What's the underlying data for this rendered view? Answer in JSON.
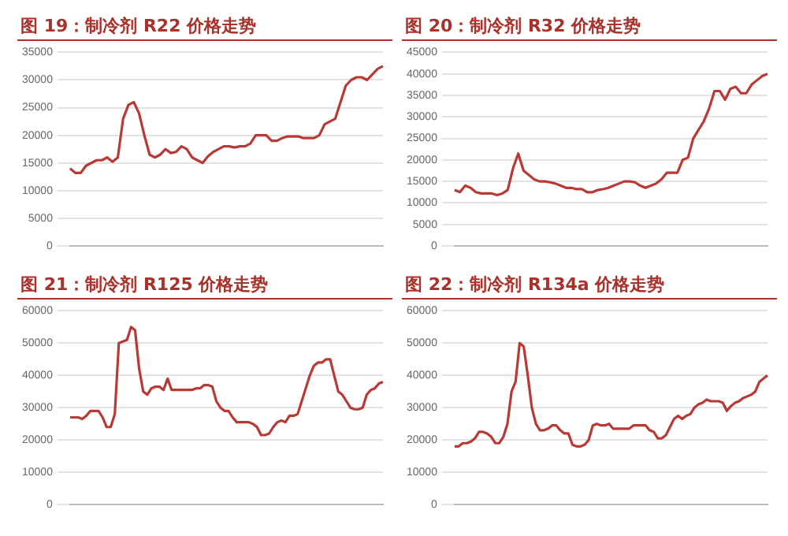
{
  "chart_data": [
    {
      "type": "line",
      "title": "图 19：制冷剂 R22 价格走势",
      "color": "#b83a35",
      "marker": "none",
      "grid": "y",
      "tick_labels": "y",
      "ylim": [
        0,
        35000
      ],
      "yticks": [
        0,
        5000,
        10000,
        15000,
        20000,
        25000,
        30000,
        35000
      ],
      "categories": [
        null,
        null,
        null,
        null,
        null,
        null,
        null,
        null,
        null,
        null,
        null,
        null,
        null,
        null,
        null,
        null,
        null,
        null,
        null,
        null,
        null,
        null,
        null,
        null,
        null,
        null,
        null,
        null,
        null,
        null,
        null,
        null,
        null,
        null,
        null,
        null,
        null,
        null,
        null,
        null,
        null,
        null,
        null,
        null,
        null,
        null,
        null,
        null,
        null,
        null,
        null,
        null,
        null,
        null,
        null,
        null,
        null,
        null,
        null,
        null
      ],
      "values": [
        14000,
        13200,
        13200,
        14500,
        15000,
        15500,
        15500,
        16000,
        15200,
        16000,
        23000,
        25500,
        26000,
        24000,
        20000,
        16500,
        16000,
        16500,
        17500,
        16800,
        17000,
        18000,
        17500,
        16000,
        15500,
        15000,
        16200,
        17000,
        17500,
        18000,
        18000,
        17800,
        18000,
        18000,
        18500,
        20000,
        20000,
        20000,
        19000,
        19000,
        19500,
        19800,
        19800,
        19800,
        19500,
        19500,
        19500,
        20000,
        22000,
        22500,
        23000,
        26000,
        29000,
        30000,
        30500,
        30500,
        30000,
        31000,
        32000,
        32500
      ]
    },
    {
      "type": "line",
      "title": "图 20：制冷剂 R32 价格走势",
      "color": "#b83a35",
      "marker": "none",
      "grid": "y",
      "tick_labels": "y",
      "ylim": [
        0,
        45000
      ],
      "yticks": [
        0,
        5000,
        10000,
        15000,
        20000,
        25000,
        30000,
        35000,
        40000,
        45000
      ],
      "categories": [
        null,
        null,
        null,
        null,
        null,
        null,
        null,
        null,
        null,
        null,
        null,
        null,
        null,
        null,
        null,
        null,
        null,
        null,
        null,
        null,
        null,
        null,
        null,
        null,
        null,
        null,
        null,
        null,
        null,
        null,
        null,
        null,
        null,
        null,
        null,
        null,
        null,
        null,
        null,
        null,
        null,
        null,
        null,
        null,
        null,
        null,
        null,
        null,
        null,
        null,
        null,
        null,
        null,
        null,
        null,
        null,
        null,
        null,
        null,
        null
      ],
      "values": [
        13000,
        12500,
        14000,
        13500,
        12500,
        12200,
        12200,
        12200,
        11800,
        12200,
        13000,
        18000,
        21500,
        17500,
        16500,
        15500,
        15000,
        15000,
        14800,
        14500,
        14000,
        13500,
        13500,
        13200,
        13200,
        12500,
        12500,
        13000,
        13200,
        13500,
        14000,
        14500,
        15000,
        15000,
        14800,
        14000,
        13500,
        14000,
        14500,
        15500,
        17000,
        17000,
        17000,
        20000,
        20500,
        25000,
        27000,
        29000,
        32000,
        36000,
        36000,
        34000,
        36500,
        37000,
        35500,
        35500,
        37500,
        38500,
        39500,
        40000
      ]
    },
    {
      "type": "line",
      "title": "图 21：制冷剂 R125 价格走势",
      "color": "#b83a35",
      "marker": "none",
      "grid": "y",
      "tick_labels": "y",
      "ylim": [
        0,
        60000
      ],
      "yticks": [
        0,
        10000,
        20000,
        30000,
        40000,
        50000,
        60000
      ],
      "categories": [
        null,
        null,
        null,
        null,
        null,
        null,
        null,
        null,
        null,
        null,
        null,
        null,
        null,
        null,
        null,
        null,
        null,
        null,
        null,
        null,
        null,
        null,
        null,
        null,
        null,
        null,
        null,
        null,
        null,
        null,
        null,
        null,
        null,
        null,
        null,
        null,
        null,
        null,
        null,
        null,
        null,
        null,
        null,
        null,
        null,
        null,
        null,
        null,
        null,
        null,
        null,
        null,
        null,
        null,
        null,
        null,
        null,
        null,
        null,
        null,
        null,
        null,
        null,
        null,
        null,
        null,
        null,
        null,
        null,
        null,
        null,
        null,
        null,
        null,
        null,
        null,
        null,
        null
      ],
      "values": [
        27000,
        27000,
        27000,
        26500,
        27500,
        29000,
        29000,
        29000,
        27000,
        24000,
        24000,
        28000,
        50000,
        50500,
        51000,
        55000,
        54000,
        42000,
        35000,
        34000,
        36000,
        36500,
        36500,
        35500,
        39000,
        35500,
        35500,
        35500,
        35500,
        35500,
        35500,
        36000,
        36000,
        37000,
        37000,
        36500,
        32000,
        30000,
        29000,
        29000,
        27000,
        25500,
        25500,
        25500,
        25500,
        25000,
        24000,
        21500,
        21500,
        22000,
        24000,
        25500,
        26000,
        25500,
        27500,
        27500,
        28000,
        32000,
        36000,
        40000,
        43000,
        44000,
        44000,
        45000,
        45000,
        40000,
        35000,
        34000,
        32000,
        30000,
        29500,
        29500,
        30000,
        34000,
        35500,
        36000,
        37500,
        38000
      ]
    },
    {
      "type": "line",
      "title": "图 22：制冷剂 R134a 价格走势",
      "color": "#b83a35",
      "marker": "none",
      "grid": "y",
      "tick_labels": "y",
      "ylim": [
        0,
        60000
      ],
      "yticks": [
        0,
        10000,
        20000,
        30000,
        40000,
        50000,
        60000
      ],
      "categories": [
        null,
        null,
        null,
        null,
        null,
        null,
        null,
        null,
        null,
        null,
        null,
        null,
        null,
        null,
        null,
        null,
        null,
        null,
        null,
        null,
        null,
        null,
        null,
        null,
        null,
        null,
        null,
        null,
        null,
        null,
        null,
        null,
        null,
        null,
        null,
        null,
        null,
        null,
        null,
        null,
        null,
        null,
        null,
        null,
        null,
        null,
        null,
        null,
        null,
        null,
        null,
        null,
        null,
        null,
        null,
        null,
        null,
        null,
        null,
        null,
        null,
        null,
        null,
        null,
        null,
        null,
        null,
        null,
        null,
        null,
        null,
        null,
        null,
        null,
        null,
        null,
        null,
        null
      ],
      "values": [
        18000,
        18000,
        19000,
        19000,
        19500,
        20500,
        22500,
        22500,
        22000,
        21000,
        19000,
        19000,
        21000,
        25000,
        35000,
        38000,
        50000,
        49000,
        40000,
        30000,
        25000,
        23000,
        23000,
        23500,
        24500,
        24500,
        23000,
        22000,
        22000,
        18500,
        18000,
        18000,
        18500,
        20000,
        24500,
        25000,
        24500,
        24500,
        25000,
        23500,
        23500,
        23500,
        23500,
        23500,
        24500,
        24500,
        24500,
        24500,
        23000,
        22500,
        20500,
        20500,
        21500,
        24000,
        26500,
        27500,
        26500,
        27500,
        28000,
        30000,
        31000,
        31500,
        32500,
        32000,
        32000,
        32000,
        31500,
        29000,
        30500,
        31500,
        32000,
        33000,
        33500,
        34000,
        35000,
        38000,
        39000,
        40000
      ]
    }
  ]
}
